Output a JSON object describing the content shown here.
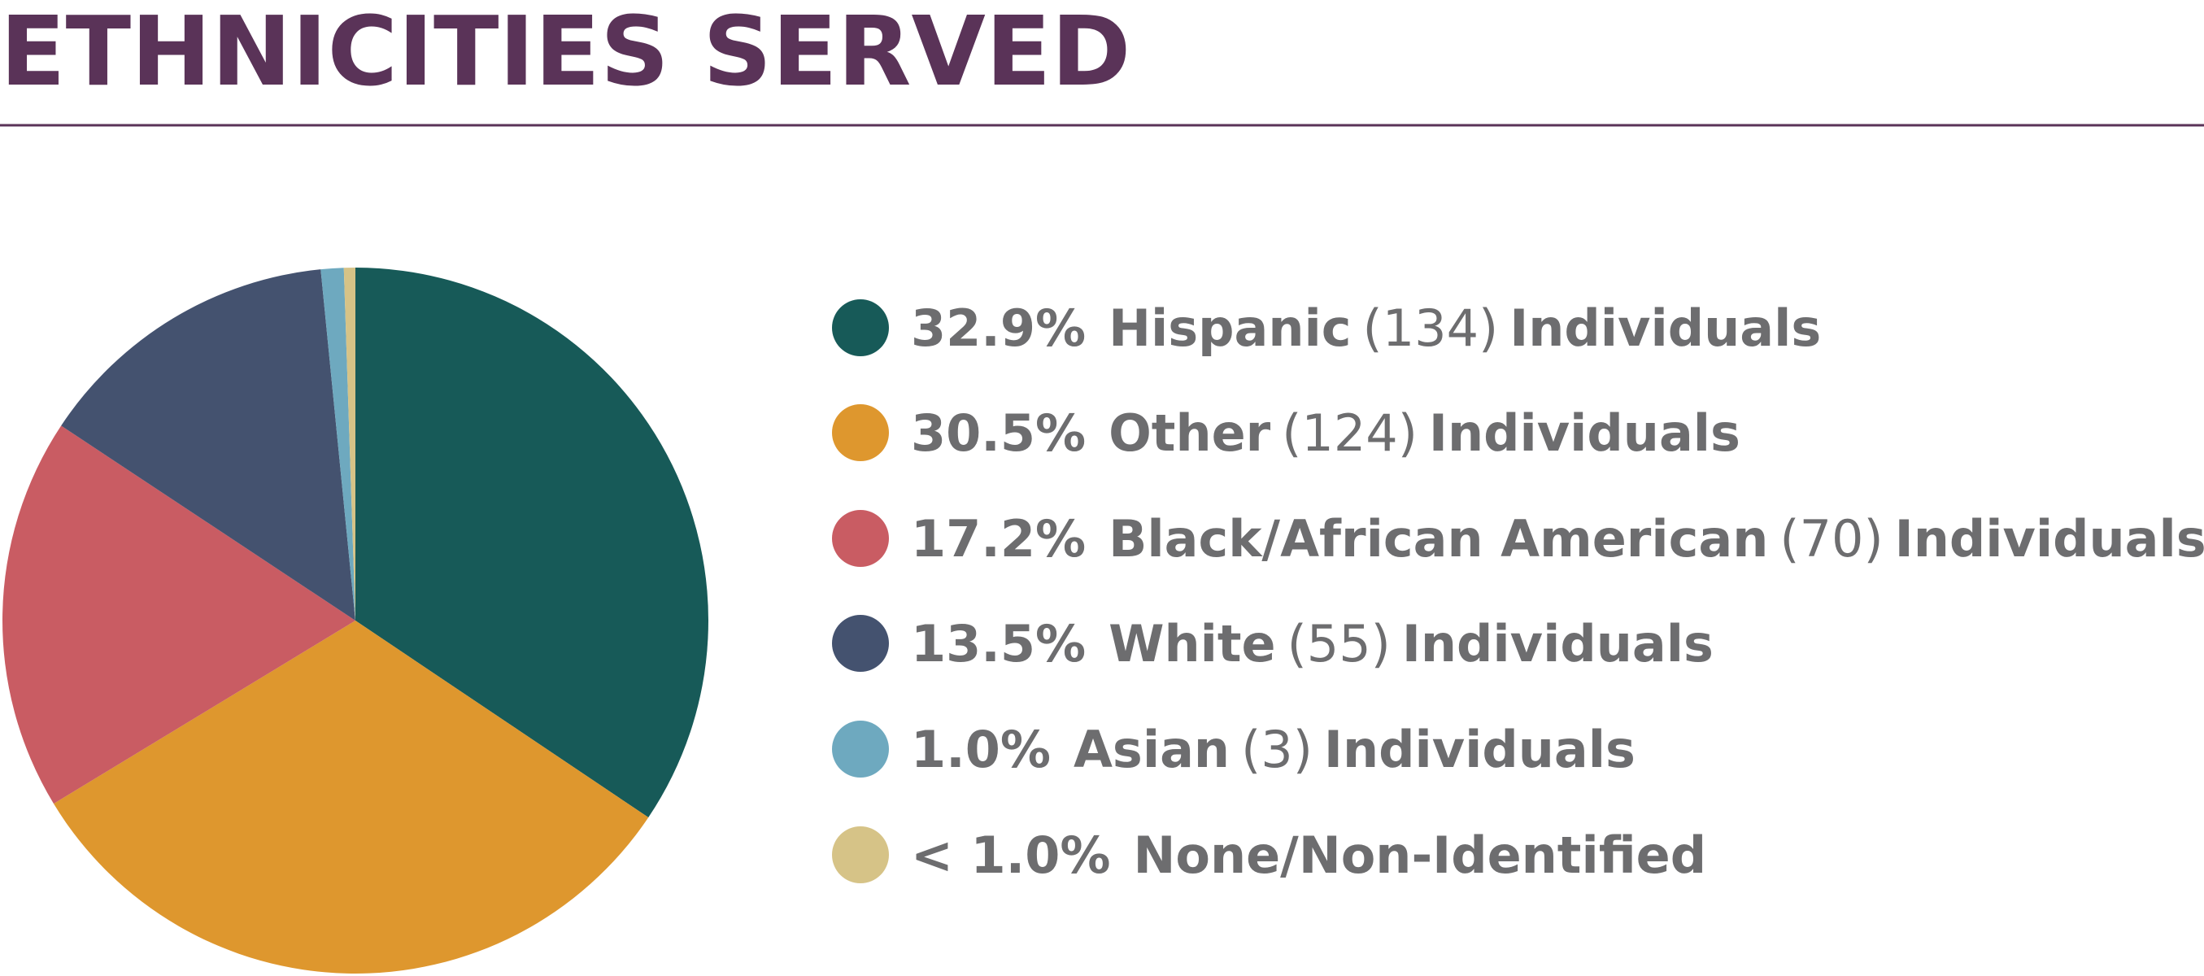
{
  "chart_data": {
    "type": "pie",
    "title": "ETHNICITIES SERVED",
    "categories": [
      "Hispanic",
      "Other",
      "Black/African American",
      "White",
      "Asian",
      "None/Non-Identified"
    ],
    "values": [
      32.9,
      30.5,
      17.2,
      13.5,
      1.0,
      0.5
    ],
    "value_labels": [
      "32.9%",
      "30.5%",
      "17.2%",
      "13.5%",
      "1.0%",
      "< 1.0%"
    ],
    "count_labels": [
      "(134)",
      "(124)",
      "(70)",
      "(55)",
      "(3)",
      null
    ],
    "count_suffix": "Individuals",
    "colors": [
      "#175a58",
      "#de972e",
      "#c95c63",
      "#44526f",
      "#6ea9bf",
      "#d6c387"
    ]
  }
}
